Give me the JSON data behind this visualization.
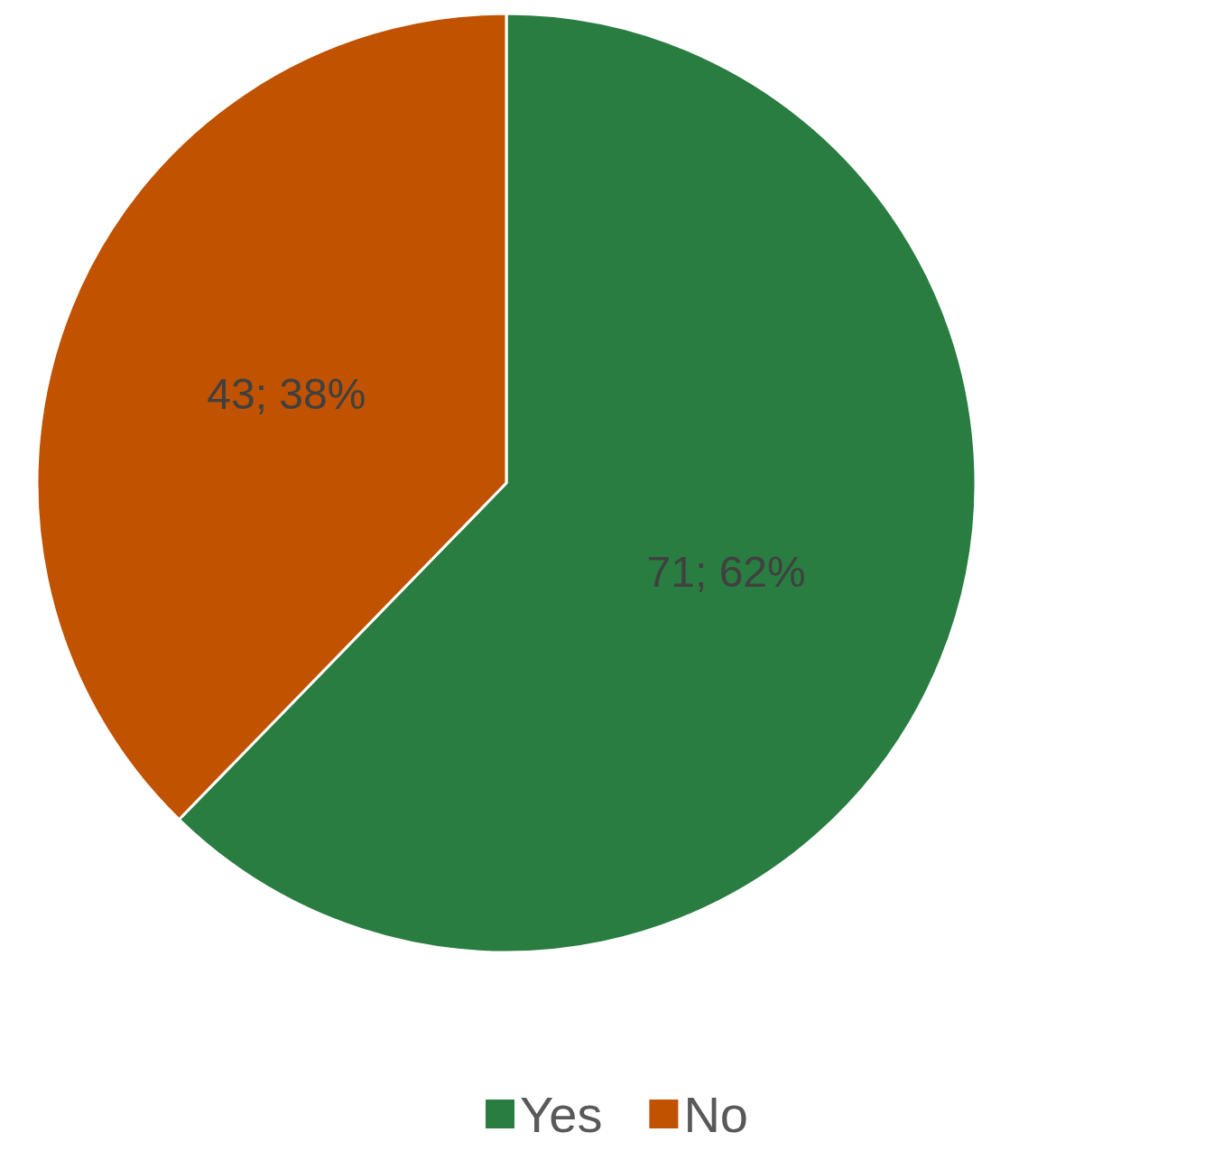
{
  "chart_data": {
    "type": "pie",
    "categories": [
      "Yes",
      "No"
    ],
    "values": [
      71,
      43
    ],
    "colors": [
      "#2a7d41",
      "#c05200"
    ],
    "value_labels": [
      "71; 62%",
      "43; 38%"
    ],
    "legend": "bottom"
  }
}
